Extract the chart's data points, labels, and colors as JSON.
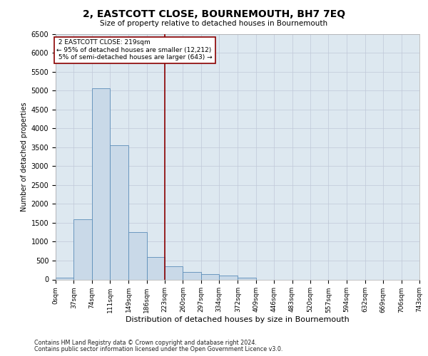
{
  "title": "2, EASTCOTT CLOSE, BOURNEMOUTH, BH7 7EQ",
  "subtitle": "Size of property relative to detached houses in Bournemouth",
  "xlabel": "Distribution of detached houses by size in Bournemouth",
  "ylabel": "Number of detached properties",
  "property_label": "2 EASTCOTT CLOSE: 219sqm",
  "pct_smaller": 95,
  "count_smaller": 12212,
  "pct_larger": 5,
  "count_larger": 643,
  "bin_edges": [
    0,
    37,
    74,
    111,
    149,
    186,
    223,
    260,
    297,
    334,
    372,
    409,
    446,
    483,
    520,
    557,
    594,
    632,
    669,
    706,
    743
  ],
  "bin_labels": [
    "0sqm",
    "37sqm",
    "74sqm",
    "111sqm",
    "149sqm",
    "186sqm",
    "223sqm",
    "260sqm",
    "297sqm",
    "334sqm",
    "372sqm",
    "409sqm",
    "446sqm",
    "483sqm",
    "520sqm",
    "557sqm",
    "594sqm",
    "632sqm",
    "669sqm",
    "706sqm",
    "743sqm"
  ],
  "bar_heights": [
    50,
    1600,
    5050,
    3550,
    1250,
    600,
    350,
    200,
    150,
    100,
    50,
    0,
    0,
    0,
    0,
    0,
    0,
    0,
    0,
    0
  ],
  "bar_color": "#c9d9e8",
  "bar_edge_color": "#5b8db8",
  "vline_color": "#8b0000",
  "vline_x": 223,
  "annotation_box_color": "#8b0000",
  "ylim": [
    0,
    6500
  ],
  "yticks": [
    0,
    500,
    1000,
    1500,
    2000,
    2500,
    3000,
    3500,
    4000,
    4500,
    5000,
    5500,
    6000,
    6500
  ],
  "grid_color": "#c0c8d8",
  "bg_color": "#dde8f0",
  "footnote1": "Contains HM Land Registry data © Crown copyright and database right 2024.",
  "footnote2": "Contains public sector information licensed under the Open Government Licence v3.0."
}
